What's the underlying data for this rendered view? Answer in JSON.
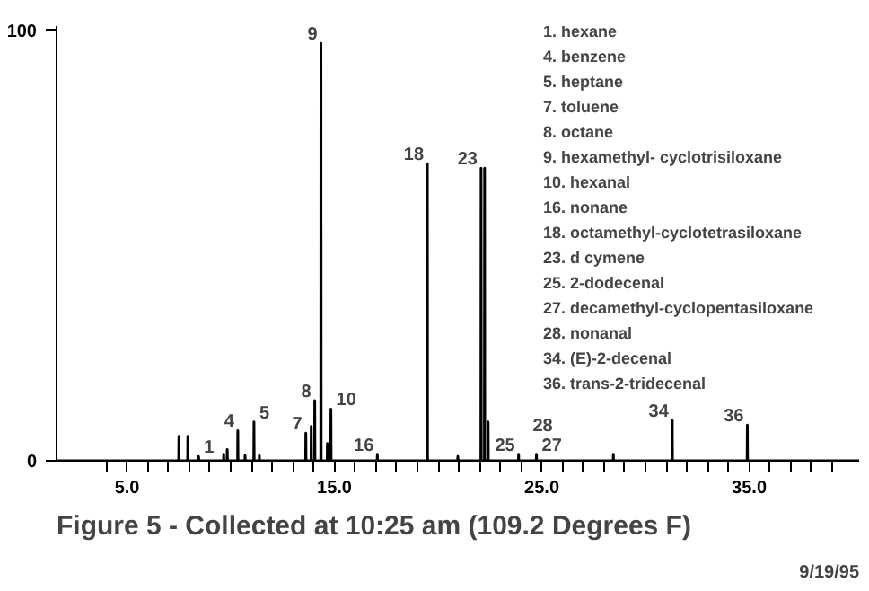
{
  "chart_data": {
    "type": "line",
    "title": "Figure 5 - Collected at 10:25 am (109.2 Degrees F)",
    "x": [
      1.6,
      7.49,
      7.5,
      7.51,
      7.92,
      7.93,
      7.94,
      8.44,
      8.45,
      8.46,
      9.65,
      9.66,
      9.67,
      9.82,
      9.83,
      9.84,
      10.33,
      10.34,
      10.35,
      10.68,
      10.69,
      10.7,
      11.11,
      11.12,
      11.13,
      11.37,
      11.38,
      11.39,
      13.61,
      13.62,
      13.63,
      13.87,
      13.88,
      13.89,
      14.04,
      14.05,
      14.06,
      14.34,
      14.35,
      14.36,
      14.65,
      14.66,
      14.67,
      14.82,
      14.83,
      14.84,
      17.06,
      17.07,
      17.08,
      19.47,
      19.48,
      19.49,
      20.94,
      20.95,
      20.96,
      22.06,
      22.07,
      22.08,
      22.23,
      22.24,
      22.25,
      22.4,
      22.41,
      22.42,
      23.87,
      23.88,
      23.89,
      24.73,
      24.74,
      24.75,
      28.44,
      28.45,
      28.46,
      31.28,
      31.29,
      31.3,
      34.9,
      34.91,
      34.92,
      40.3
    ],
    "series": [
      {
        "color": "#000000",
        "values": [
          0,
          0,
          5.7,
          0,
          0,
          5.7,
          0,
          0,
          1,
          0,
          0,
          1.5,
          0,
          0,
          2.6,
          0,
          0,
          7,
          0,
          0,
          1.2,
          0,
          0,
          9,
          0,
          0,
          1.2,
          0,
          0,
          6.4,
          0,
          0,
          8,
          0,
          0,
          14,
          0,
          0,
          97,
          0,
          0,
          4,
          0,
          0,
          12,
          0,
          0,
          1.5,
          0,
          0,
          69,
          0,
          0,
          1,
          0,
          0,
          68,
          0,
          0,
          68,
          0,
          0,
          9,
          0,
          0,
          1.5,
          0,
          0,
          1.5,
          0,
          0,
          1.5,
          0,
          0,
          9.4,
          0,
          0,
          8.3,
          0,
          0
        ]
      }
    ],
    "xlim": [
      1.6,
      40.3
    ],
    "ylim": [
      0,
      101
    ],
    "xticks": [
      {
        "value": 4,
        "label": null
      },
      {
        "value": 5,
        "label": "5.0"
      },
      {
        "value": 6,
        "label": null
      },
      {
        "value": 7,
        "label": null
      },
      {
        "value": 8,
        "label": null
      },
      {
        "value": 9,
        "label": null
      },
      {
        "value": 10,
        "label": null
      },
      {
        "value": 11,
        "label": null
      },
      {
        "value": 12,
        "label": null
      },
      {
        "value": 13,
        "label": null
      },
      {
        "value": 14,
        "label": null
      },
      {
        "value": 15,
        "label": "15.0"
      },
      {
        "value": 16,
        "label": null
      },
      {
        "value": 17,
        "label": null
      },
      {
        "value": 18,
        "label": null
      },
      {
        "value": 19,
        "label": null
      },
      {
        "value": 20,
        "label": null
      },
      {
        "value": 21,
        "label": null
      },
      {
        "value": 22,
        "label": null
      },
      {
        "value": 23,
        "label": null
      },
      {
        "value": 24,
        "label": null
      },
      {
        "value": 25,
        "label": "25.0"
      },
      {
        "value": 26,
        "label": null
      },
      {
        "value": 27,
        "label": null
      },
      {
        "value": 28,
        "label": null
      },
      {
        "value": 29,
        "label": null
      },
      {
        "value": 30,
        "label": null
      },
      {
        "value": 31,
        "label": null
      },
      {
        "value": 32,
        "label": null
      },
      {
        "value": 33,
        "label": null
      },
      {
        "value": 34,
        "label": null
      },
      {
        "value": 35,
        "label": "35.0"
      },
      {
        "value": 36,
        "label": null
      },
      {
        "value": 37,
        "label": null
      },
      {
        "value": 38,
        "label": null
      },
      {
        "value": 39,
        "label": null
      }
    ],
    "yticks": [
      0,
      100
    ],
    "grid": false,
    "annotations": [
      {
        "text": "1",
        "x": 8.45,
        "y": 1
      },
      {
        "text": "4",
        "x": 10.34,
        "y": 7
      },
      {
        "text": "5",
        "x": 11.12,
        "y": 9
      },
      {
        "text": "7",
        "x": 13.62,
        "y": 6.4
      },
      {
        "text": "8",
        "x": 14.05,
        "y": 14
      },
      {
        "text": "9",
        "x": 14.35,
        "y": 97
      },
      {
        "text": "10",
        "x": 14.83,
        "y": 12
      },
      {
        "text": "16",
        "x": 17.07,
        "y": 1.5
      },
      {
        "text": "18",
        "x": 19.48,
        "y": 69
      },
      {
        "text": "23",
        "x": 22.07,
        "y": 68
      },
      {
        "text": "25",
        "x": 23.88,
        "y": 1.5
      },
      {
        "text": "27",
        "x": 24.74,
        "y": 1.5
      },
      {
        "text": "28",
        "x": 25.7,
        "y": 1
      },
      {
        "text": "34",
        "x": 31.29,
        "y": 9.4
      },
      {
        "text": "36",
        "x": 34.91,
        "y": 8.3
      },
      "1. hexane",
      "4. benzene",
      "5. heptane",
      "7. toluene",
      "8. octane",
      "9. hexamethyl-    cyclotrisiloxane",
      "10. hexanal",
      "16. nonane",
      "18. octamethyl-cyclotetrasiloxane",
      "23. d cymene",
      "25. 2-dodecenal",
      "27. decamethyl-cyclopentasiloxane",
      "28. nonanal",
      "34. (E)-2-decenal",
      "36. trans-2-tridecenal",
      "9/19/95"
    ]
  }
}
